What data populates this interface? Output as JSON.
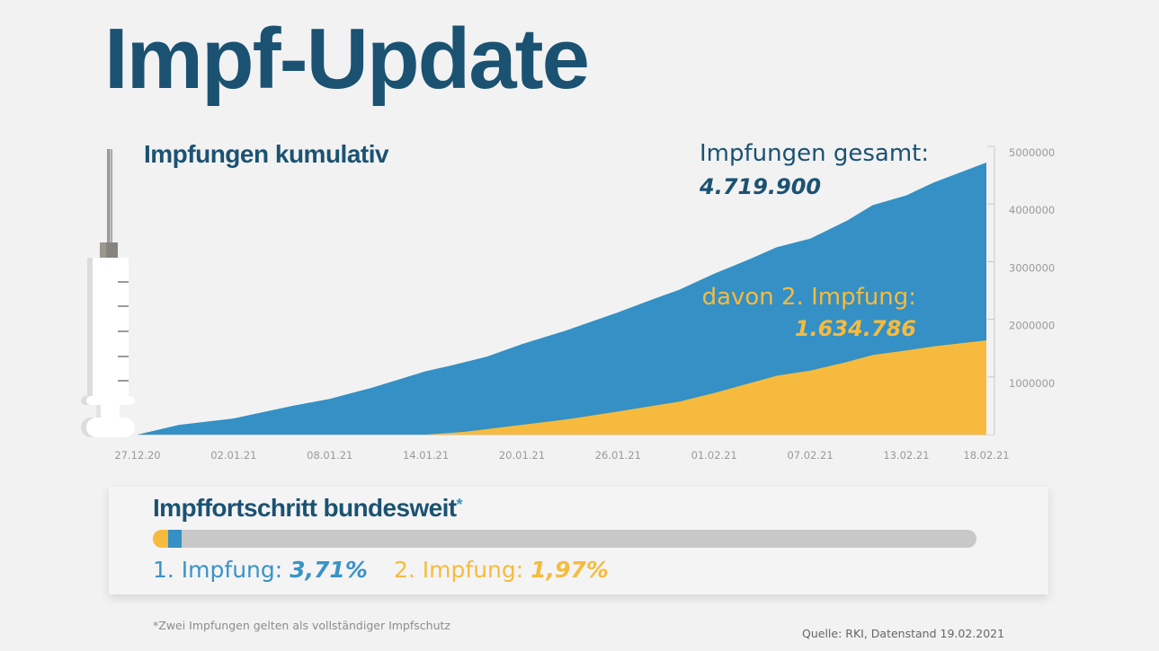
{
  "title": "Impf-Update",
  "chart_title": "Impfungen kumulativ",
  "annotations": {
    "total_label": "Impfungen gesamt:",
    "total_value": "4.719.900",
    "second_label": "davon 2. Impfung:",
    "second_value": "1.634.786"
  },
  "colors": {
    "title": "#1b5272",
    "total": "#3490c5",
    "second": "#f6bb3e",
    "progress_track": "#c8c8c8"
  },
  "chart_data": {
    "type": "area",
    "title": "Impfungen kumulativ",
    "xlabel": "",
    "ylabel": "",
    "x_start": "2020-12-27",
    "x_end": "2021-02-18",
    "x_tick_labels": [
      "27.12.20",
      "02.01.21",
      "08.01.21",
      "14.01.21",
      "20.01.21",
      "26.01.21",
      "01.02.21",
      "07.02.21",
      "13.02.21",
      "18.02.21"
    ],
    "x_tick_days": [
      0,
      6,
      12,
      18,
      24,
      30,
      36,
      42,
      48,
      53
    ],
    "y_tick_labels": [
      "1000000",
      "2000000",
      "3000000",
      "4000000",
      "5000000"
    ],
    "y_ticks": [
      1000000,
      2000000,
      3000000,
      4000000,
      5000000
    ],
    "ylim": [
      0,
      5000000
    ],
    "y_axis_position": "right",
    "grid": false,
    "series": [
      {
        "name": "Impfungen gesamt",
        "days": [
          0,
          2.6,
          6,
          9.7,
          12,
          14.6,
          18,
          19.6,
          21.8,
          24,
          26.7,
          30,
          32.2,
          33.8,
          36,
          38.2,
          39.9,
          42,
          44.3,
          45.9,
          48,
          49.7,
          53
        ],
        "values": [
          0,
          170000,
          280000,
          500000,
          620000,
          810000,
          1100000,
          1200000,
          1350000,
          1570000,
          1800000,
          2120000,
          2350000,
          2510000,
          2790000,
          3040000,
          3250000,
          3400000,
          3710000,
          3980000,
          4150000,
          4370000,
          4719900
        ]
      },
      {
        "name": "davon 2. Impfung",
        "days": [
          0,
          18,
          20.5,
          24,
          26.7,
          30,
          33.8,
          36,
          38.2,
          39.9,
          42,
          44.3,
          45.9,
          48,
          49.7,
          53
        ],
        "values": [
          0,
          0,
          50000,
          170000,
          260000,
          400000,
          570000,
          720000,
          890000,
          1020000,
          1110000,
          1260000,
          1380000,
          1460000,
          1530000,
          1634786
        ]
      }
    ]
  },
  "progress": {
    "title": "Impffortschritt bundesweit",
    "title_marker": "*",
    "first_label": "1. Impfung:",
    "first_value": "3,71%",
    "first_percent": 3.71,
    "second_label": "2. Impfung:",
    "second_value": "1,97%",
    "second_percent": 1.97
  },
  "footnote": "*Zwei Impfungen gelten als vollständiger Impfschutz",
  "source": "Quelle: RKI, Datenstand 19.02.2021"
}
